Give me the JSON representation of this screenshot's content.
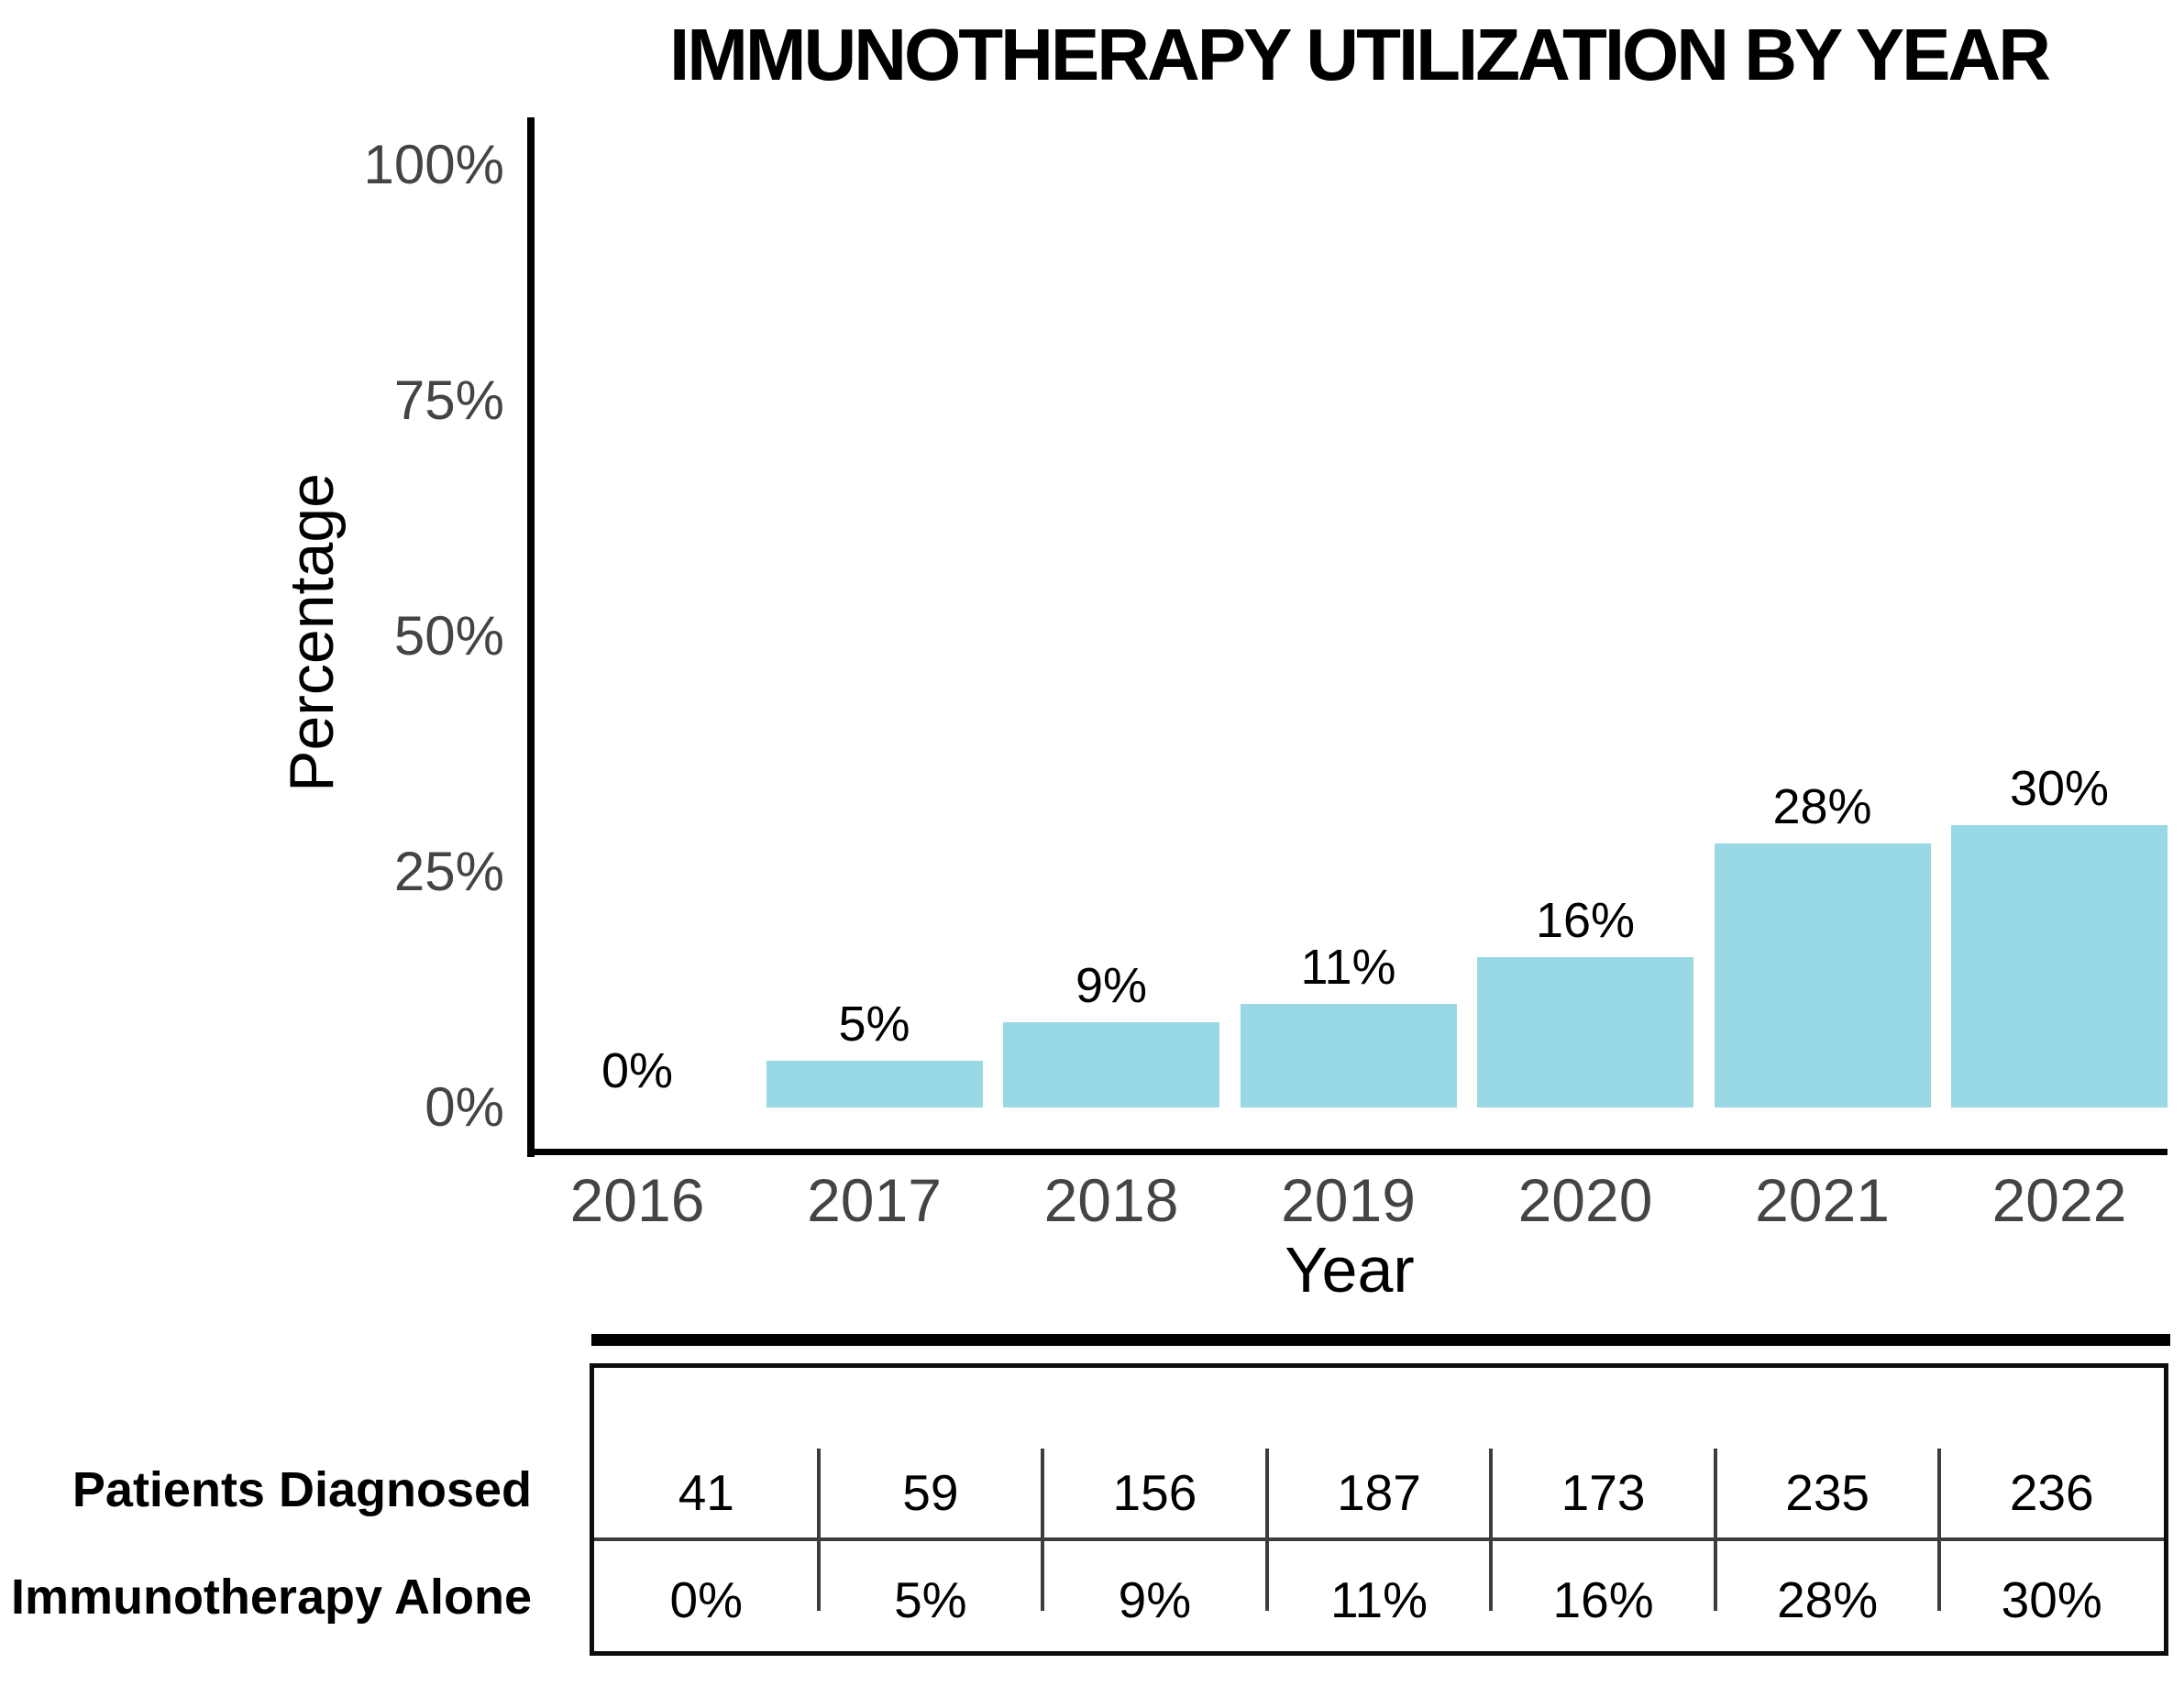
{
  "title": "IMMUNOTHERAPY UTILIZATION BY YEAR",
  "chart_data": {
    "type": "bar",
    "title": "IMMUNOTHERAPY UTILIZATION BY YEAR",
    "xlabel": "Year",
    "ylabel": "Percentage",
    "categories": [
      "2016",
      "2017",
      "2018",
      "2019",
      "2020",
      "2021",
      "2022"
    ],
    "values": [
      0,
      5,
      9,
      11,
      16,
      28,
      30
    ],
    "bar_labels": [
      "0%",
      "5%",
      "9%",
      "11%",
      "16%",
      "28%",
      "30%"
    ],
    "y_tick_labels": [
      "0%",
      "25%",
      "50%",
      "75%",
      "100%"
    ],
    "y_tick_values": [
      0,
      25,
      50,
      75,
      100
    ],
    "ylim": [
      0,
      100
    ],
    "grid": false,
    "legend": "none",
    "bar_color": "#99d9e5"
  },
  "table": {
    "rows": [
      {
        "label": "Patients Diagnosed",
        "values": [
          "41",
          "59",
          "156",
          "187",
          "173",
          "235",
          "236"
        ]
      },
      {
        "label": "Immunotherapy Alone",
        "values": [
          "0%",
          "5%",
          "9%",
          "11%",
          "16%",
          "28%",
          "30%"
        ]
      }
    ]
  },
  "colors": {
    "bar": "#99d9e5",
    "axis_text": "#444444",
    "axis_line": "#000000",
    "text": "#000000"
  }
}
